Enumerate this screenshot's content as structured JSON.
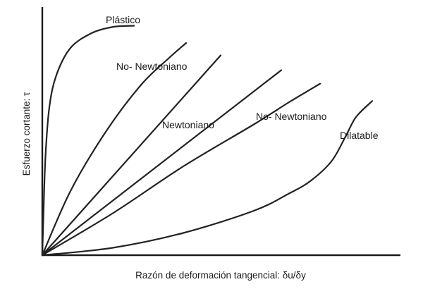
{
  "chart_data": {
    "type": "line",
    "title": "",
    "xlabel": "Razón de deformación tangencial: δu/δy",
    "ylabel": "Esfuerzo cortante: τ",
    "xlim": [
      0,
      100
    ],
    "ylim": [
      0,
      100
    ],
    "grid": false,
    "legend": "none",
    "series": [
      {
        "name": "Plástico",
        "x": [
          0,
          0.3,
          0.9,
          2,
          4,
          8,
          14,
          20,
          26
        ],
        "y": [
          0,
          15,
          40,
          60,
          73,
          84,
          90,
          92.5,
          93
        ]
      },
      {
        "name": "No- Newtoniano",
        "x": [
          0,
          8,
          18,
          28,
          36,
          40.8
        ],
        "y": [
          0,
          26,
          50,
          69,
          80,
          86
        ]
      },
      {
        "name": "Newtoniano",
        "x": [
          0,
          50.6
        ],
        "y": [
          0,
          81
        ]
      },
      {
        "name": "",
        "x": [
          0,
          67.8
        ],
        "y": [
          0,
          75
        ]
      },
      {
        "name": "No- Newtoniano",
        "x": [
          0,
          20,
          40,
          60,
          70,
          78.8
        ],
        "y": [
          0,
          17,
          36,
          53,
          62,
          69.5
        ]
      },
      {
        "name": "Dilatable",
        "x": [
          0,
          20,
          40,
          60,
          70,
          76,
          82,
          86,
          89,
          93.6
        ],
        "y": [
          0,
          3,
          9,
          18,
          25,
          30,
          38,
          48,
          56,
          62.5
        ]
      }
    ]
  }
}
